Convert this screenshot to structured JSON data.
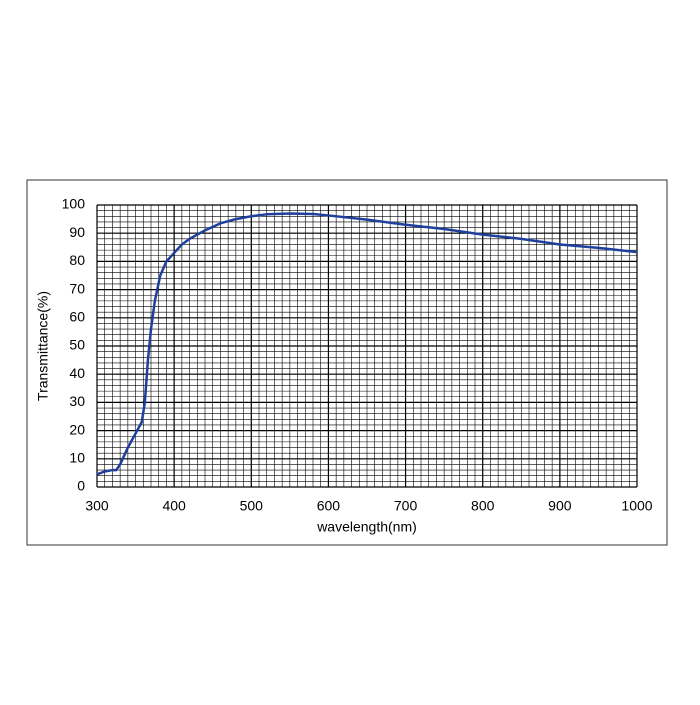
{
  "chart_data": {
    "type": "line",
    "xlabel": "wavelength(nm)",
    "ylabel": "Transmittance(%)",
    "series": [
      {
        "color": "#1f3f9c",
        "x": [
          300,
          310,
          320,
          325,
          330,
          340,
          350,
          358,
          362,
          366,
          370,
          375,
          382,
          390,
          400,
          410,
          420,
          440,
          460,
          480,
          500,
          520,
          550,
          580,
          600,
          650,
          700,
          750,
          800,
          850,
          900,
          950,
          1000
        ],
        "values": [
          4.5,
          5.5,
          6,
          6,
          8,
          14,
          19,
          23,
          30,
          45,
          56,
          66,
          75,
          80,
          83,
          86,
          88,
          91,
          93.5,
          95,
          96,
          96.7,
          97,
          96.8,
          96.3,
          94.8,
          93,
          91.5,
          89.5,
          88,
          86,
          84.8,
          83.3
        ]
      }
    ],
    "xlim": [
      300,
      1000
    ],
    "xticks": [
      300,
      400,
      500,
      600,
      700,
      800,
      900,
      1000
    ],
    "ylim": [
      0,
      100
    ],
    "yticks": [
      0,
      10,
      20,
      30,
      40,
      50,
      60,
      70,
      80,
      90,
      100
    ],
    "grid": true,
    "minor_grid": {
      "x": 10,
      "y": 2
    }
  }
}
